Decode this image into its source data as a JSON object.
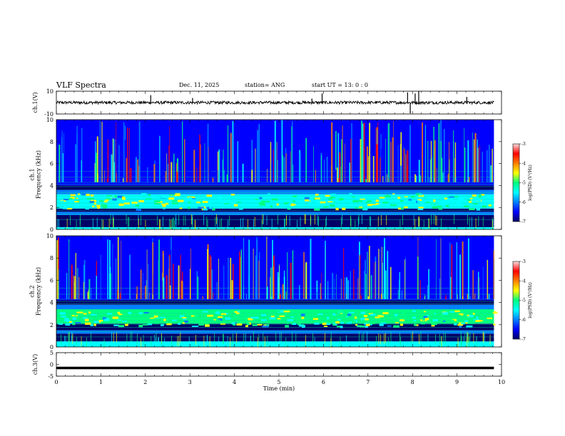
{
  "header": {
    "title": "VLF Spectra",
    "date": "Dec. 11, 2025",
    "station": "station= ANG",
    "start": "start  UT  =   13: 0   : 0"
  },
  "chart_data": [
    {
      "type": "line",
      "id": "ch1-waveform",
      "ylabel": "ch.1(V)",
      "ylim": [
        -10,
        10
      ],
      "ytick_labels": [
        "10",
        "-10"
      ],
      "xlim": [
        0,
        10
      ],
      "series": [
        {
          "values_note": "",
          "spikes": [
            [
              2.12,
              6.5
            ],
            [
              3.06,
              4
            ],
            [
              5.74,
              3.5
            ],
            [
              5.97,
              8
            ],
            [
              7.89,
              9
            ],
            [
              7.95,
              -9.5
            ],
            [
              8.06,
              8
            ],
            [
              8.14,
              10
            ],
            [
              9.22,
              5
            ]
          ]
        }
      ]
    },
    {
      "type": "heatmap",
      "id": "ch1-spectrogram",
      "ylabel": "ch.1\nFrequency (kHz)",
      "ylabel_line1": "ch.1",
      "ylabel_line2": "Frequency (kHz)",
      "ylim": [
        0,
        10
      ],
      "ytick_labels": [
        "0",
        "2",
        "4",
        "6",
        "8",
        "10"
      ],
      "xlim": [
        0,
        10
      ],
      "colorbar": {
        "label": "log(PSD) (V²/Hz)",
        "ticks": [
          "-3",
          "-4",
          "-5",
          "-6",
          "-7"
        ],
        "range": [
          -7,
          -3
        ]
      },
      "bands": [
        {
          "f": [
            0.0,
            0.2
          ],
          "level": -5.3
        },
        {
          "f": [
            0.2,
            1.3
          ],
          "level": -6.9
        },
        {
          "f": [
            1.3,
            1.6
          ],
          "level": -5.8
        },
        {
          "f": [
            1.6,
            1.9
          ],
          "level": -6.7
        },
        {
          "f": [
            1.9,
            3.2
          ],
          "level": -5.2
        },
        {
          "f": [
            3.2,
            3.6
          ],
          "level": -5.6
        },
        {
          "f": [
            3.6,
            4.0
          ],
          "level": -6.8
        },
        {
          "f": [
            4.0,
            4.5
          ],
          "level": -6.2
        },
        {
          "f": [
            4.5,
            10.0
          ],
          "level": -6.4
        }
      ]
    },
    {
      "type": "heatmap",
      "id": "ch2-spectrogram",
      "ylabel": "ch.2\nFrequency (kHz)",
      "ylabel_line1": "ch.2",
      "ylabel_line2": "Frequency (kHz)",
      "ylim": [
        0,
        10
      ],
      "ytick_labels": [
        "0",
        "2",
        "4",
        "6",
        "8",
        "10"
      ],
      "xlim": [
        0,
        10
      ],
      "colorbar": {
        "label": "log(PSD) (V²/Hz)",
        "ticks": [
          "-3",
          "-4",
          "-5",
          "-6",
          "-7"
        ],
        "range": [
          -7,
          -3
        ]
      },
      "bands": [
        {
          "f": [
            0.0,
            0.5
          ],
          "level": -5.5
        },
        {
          "f": [
            0.5,
            1.2
          ],
          "level": -6.8
        },
        {
          "f": [
            1.2,
            1.5
          ],
          "level": -5.9
        },
        {
          "f": [
            1.5,
            2.1
          ],
          "level": -6.8
        },
        {
          "f": [
            2.1,
            3.4
          ],
          "level": -5.0
        },
        {
          "f": [
            3.4,
            3.8
          ],
          "level": -5.8
        },
        {
          "f": [
            3.8,
            4.2
          ],
          "level": -6.9
        },
        {
          "f": [
            4.2,
            10.0
          ],
          "level": -6.4
        }
      ]
    },
    {
      "type": "line",
      "id": "ch3-waveform",
      "ylabel": "ch.3(V)",
      "ylim": [
        -5,
        5
      ],
      "ytick_labels": [
        "5",
        "0",
        "-5"
      ],
      "xlim": [
        0,
        10
      ],
      "series": [
        {
          "constant": -1.5
        }
      ]
    }
  ],
  "xaxis": {
    "label": "Time  (min)",
    "tick_labels": [
      "0",
      "1",
      "2",
      "3",
      "4",
      "5",
      "6",
      "7",
      "8",
      "9",
      "10"
    ],
    "data_end": 9.83
  },
  "colors": {
    "colormap": [
      "#000066",
      "#0000ff",
      "#0080ff",
      "#00ffff",
      "#00ff80",
      "#ffff00",
      "#ff8000",
      "#ff0000",
      "#ffe0e0"
    ]
  }
}
